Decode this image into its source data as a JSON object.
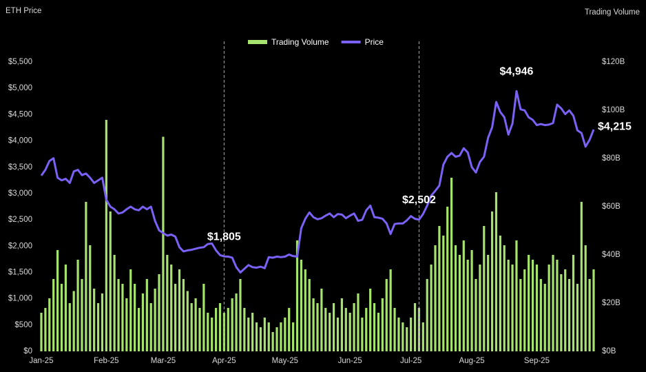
{
  "chart_data": {
    "type": "bar-line",
    "y_label": "ETH Price",
    "y2_label": "Trading Volume",
    "categories": [
      "Jan-25",
      null,
      null,
      null,
      null,
      null,
      null,
      null,
      null,
      null,
      null,
      null,
      null,
      null,
      null,
      null,
      "Feb-25",
      null,
      null,
      null,
      null,
      null,
      null,
      null,
      null,
      null,
      null,
      null,
      null,
      null,
      "Mar-25",
      null,
      null,
      null,
      null,
      null,
      null,
      null,
      null,
      null,
      null,
      null,
      null,
      null,
      null,
      "Apr-25",
      null,
      null,
      null,
      null,
      null,
      null,
      null,
      null,
      null,
      null,
      null,
      null,
      null,
      null,
      "May-25",
      null,
      null,
      null,
      null,
      null,
      null,
      null,
      null,
      null,
      null,
      null,
      null,
      null,
      null,
      null,
      "Jun-25",
      null,
      null,
      null,
      null,
      null,
      null,
      null,
      null,
      null,
      null,
      null,
      null,
      null,
      null,
      "Jul-25",
      null,
      null,
      null,
      null,
      null,
      null,
      null,
      null,
      null,
      null,
      null,
      null,
      null,
      null,
      "Aug-25",
      null,
      null,
      null,
      null,
      null,
      null,
      null,
      null,
      null,
      null,
      null,
      null,
      null,
      null,
      null,
      "Sep-25",
      null,
      null,
      null,
      null,
      null,
      null,
      null,
      null,
      null,
      null,
      null,
      null,
      null,
      null
    ],
    "series": [
      {
        "name": "Trading Volume",
        "type": "bar",
        "axis": "y2",
        "color": "#a6e36e",
        "values": [
          16,
          18,
          22,
          30,
          42,
          28,
          36,
          20,
          25,
          38,
          30,
          62,
          44,
          26,
          20,
          24,
          96,
          58,
          40,
          30,
          28,
          22,
          34,
          28,
          18,
          24,
          30,
          20,
          26,
          32,
          89,
          40,
          36,
          28,
          34,
          30,
          25,
          20,
          22,
          18,
          28,
          16,
          14,
          18,
          20,
          16,
          18,
          22,
          24,
          30,
          18,
          14,
          16,
          12,
          10,
          14,
          12,
          8,
          10,
          12,
          14,
          18,
          12,
          46,
          38,
          34,
          30,
          22,
          20,
          26,
          18,
          16,
          20,
          14,
          22,
          18,
          16,
          20,
          24,
          14,
          18,
          26,
          20,
          16,
          22,
          30,
          34,
          18,
          14,
          12,
          10,
          14,
          20,
          18,
          12,
          30,
          36,
          44,
          52,
          48,
          60,
          72,
          44,
          40,
          46,
          38,
          42,
          30,
          36,
          52,
          40,
          58,
          66,
          48,
          44,
          38,
          36,
          46,
          30,
          34,
          40,
          38,
          36,
          30,
          28,
          36,
          40,
          38,
          32,
          34,
          30,
          40,
          28,
          62,
          44,
          30,
          34
        ]
      },
      {
        "name": "Price",
        "type": "line",
        "axis": "y",
        "color": "#7b61f5",
        "values": [
          3340,
          3450,
          3620,
          3670,
          3300,
          3250,
          3280,
          3200,
          3420,
          3450,
          3350,
          3380,
          3300,
          3200,
          3250,
          3300,
          2880,
          2750,
          2700,
          2620,
          2640,
          2700,
          2750,
          2700,
          2680,
          2750,
          2700,
          2750,
          2480,
          2300,
          2250,
          2200,
          2220,
          2180,
          1980,
          1900,
          1920,
          1930,
          1950,
          1970,
          1980,
          2040,
          2050,
          1920,
          1830,
          1805,
          1800,
          1780,
          1600,
          1500,
          1570,
          1640,
          1600,
          1590,
          1610,
          1580,
          1790,
          1780,
          1800,
          1790,
          1800,
          1840,
          1810,
          1800,
          2340,
          2520,
          2640,
          2550,
          2510,
          2530,
          2580,
          2620,
          2550,
          2610,
          2600,
          2530,
          2580,
          2620,
          2480,
          2500,
          2680,
          2770,
          2550,
          2540,
          2520,
          2430,
          2230,
          2420,
          2430,
          2430,
          2490,
          2570,
          2520,
          2502,
          2610,
          2770,
          2960,
          3050,
          3150,
          3550,
          3700,
          3770,
          3700,
          3720,
          3860,
          3780,
          3500,
          3400,
          3600,
          3700,
          4060,
          4260,
          4740,
          4550,
          4450,
          4120,
          4330,
          4946,
          4600,
          4580,
          4450,
          4400,
          4300,
          4320,
          4300,
          4310,
          4340,
          4690,
          4620,
          4510,
          4580,
          4480,
          4200,
          4150,
          3890,
          4020,
          4215
        ],
        "value_labels": [
          null,
          null,
          null,
          null,
          null,
          null,
          null,
          null,
          null,
          null,
          null,
          null,
          null,
          null,
          null,
          null,
          null,
          null,
          null,
          null,
          null,
          null,
          null,
          null,
          null,
          null,
          null,
          null,
          null,
          null,
          null,
          null,
          null,
          null,
          null,
          null,
          null,
          null,
          null,
          null,
          null,
          null,
          null,
          null,
          null,
          "$1,805",
          null,
          null,
          null,
          null,
          null,
          null,
          null,
          null,
          null,
          null,
          null,
          null,
          null,
          null,
          null,
          null,
          null,
          null,
          null,
          null,
          null,
          null,
          null,
          null,
          null,
          null,
          null,
          null,
          null,
          null,
          null,
          null,
          null,
          null,
          null,
          null,
          null,
          null,
          null,
          null,
          null,
          null,
          null,
          null,
          null,
          null,
          null,
          "$2,502",
          null,
          null,
          null,
          null,
          null,
          null,
          null,
          null,
          null,
          null,
          null,
          null,
          null,
          null,
          null,
          null,
          null,
          null,
          null,
          null,
          null,
          null,
          null,
          "$4,946",
          null,
          null,
          null,
          null,
          null,
          null,
          null,
          null,
          null,
          null,
          null,
          null,
          null,
          null,
          null,
          null,
          null,
          null,
          "$4,215"
        ]
      }
    ],
    "ylim": [
      0,
      5500
    ],
    "yticks": [
      {
        "value": 0,
        "label": "$0"
      },
      {
        "value": 500,
        "label": "$500"
      },
      {
        "value": 1000,
        "label": "$1,000"
      },
      {
        "value": 1500,
        "label": "$1,500"
      },
      {
        "value": 2000,
        "label": "$2,000"
      },
      {
        "value": 2500,
        "label": "$2,500"
      },
      {
        "value": 3000,
        "label": "$3,000"
      },
      {
        "value": 3500,
        "label": "$3,500"
      },
      {
        "value": 4000,
        "label": "$4,000"
      },
      {
        "value": 4500,
        "label": "$4,500"
      },
      {
        "value": 5000,
        "label": "$5,000"
      },
      {
        "value": 5500,
        "label": "$5,500"
      }
    ],
    "y2lim": [
      0,
      120
    ],
    "y2ticks": [
      {
        "value": 0,
        "label": "$0B"
      },
      {
        "value": 20,
        "label": "$20B"
      },
      {
        "value": 40,
        "label": "$40B"
      },
      {
        "value": 60,
        "label": "$60B"
      },
      {
        "value": 80,
        "label": "$80B"
      },
      {
        "value": 100,
        "label": "$100B"
      },
      {
        "value": 120,
        "label": "$120B"
      }
    ],
    "grid": false,
    "legend": "top"
  }
}
